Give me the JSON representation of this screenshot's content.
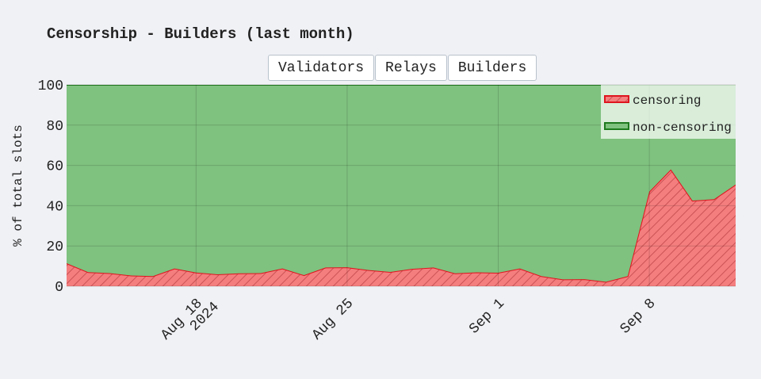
{
  "chart_data": {
    "type": "stacked_area",
    "title": "Censorship - Builders (last month)",
    "buttons": [
      "Validators",
      "Relays",
      "Builders"
    ],
    "y_label": "% of total slots",
    "x": [
      "2024-08-12",
      "2024-08-13",
      "2024-08-14",
      "2024-08-15",
      "2024-08-16",
      "2024-08-17",
      "2024-08-18",
      "2024-08-19",
      "2024-08-20",
      "2024-08-21",
      "2024-08-22",
      "2024-08-23",
      "2024-08-24",
      "2024-08-25",
      "2024-08-26",
      "2024-08-27",
      "2024-08-28",
      "2024-08-29",
      "2024-08-30",
      "2024-08-31",
      "2024-09-01",
      "2024-09-02",
      "2024-09-03",
      "2024-09-04",
      "2024-09-05",
      "2024-09-06",
      "2024-09-07",
      "2024-09-08",
      "2024-09-09",
      "2024-09-10",
      "2024-09-11",
      "2024-09-12"
    ],
    "series": [
      {
        "name": "censoring",
        "color": "#f47e7e",
        "line_color": "#e0141e",
        "values": [
          11.4,
          7,
          6.5,
          5.3,
          5,
          8.8,
          6.8,
          5.9,
          6.4,
          6.5,
          8.8,
          5.5,
          9.3,
          9.4,
          8,
          7.1,
          8.6,
          9.3,
          6.4,
          6.9,
          6.7,
          8.8,
          5,
          3.4,
          3.5,
          2.2,
          5,
          47,
          58,
          42.5,
          43.2,
          50.5
        ]
      },
      {
        "name": "non-censoring",
        "color": "#7fc17f",
        "line_color": "#1e7a1e",
        "values": [
          88.6,
          93,
          93.5,
          94.7,
          95,
          91.2,
          93.2,
          94.1,
          93.6,
          93.5,
          91.2,
          94.5,
          90.7,
          90.6,
          92,
          92.9,
          91.4,
          90.7,
          93.6,
          93.1,
          93.3,
          91.2,
          95,
          96.6,
          96.5,
          97.8,
          95,
          53,
          42,
          57.5,
          56.8,
          49.5
        ]
      }
    ],
    "xlim": [
      "2024-08-12",
      "2024-09-12"
    ],
    "xticks": [
      {
        "value": "2024-08-18",
        "label": [
          "Aug 18",
          "2024"
        ]
      },
      {
        "value": "2024-08-25",
        "label": "Aug 25"
      },
      {
        "value": "2024-09-01",
        "label": "Sep 1"
      },
      {
        "value": "2024-09-08",
        "label": "Sep 8"
      }
    ],
    "ylim": [
      0,
      100
    ],
    "yticks": [
      0,
      20,
      40,
      60,
      80,
      100
    ],
    "grid": true,
    "legend_position": "top right"
  }
}
